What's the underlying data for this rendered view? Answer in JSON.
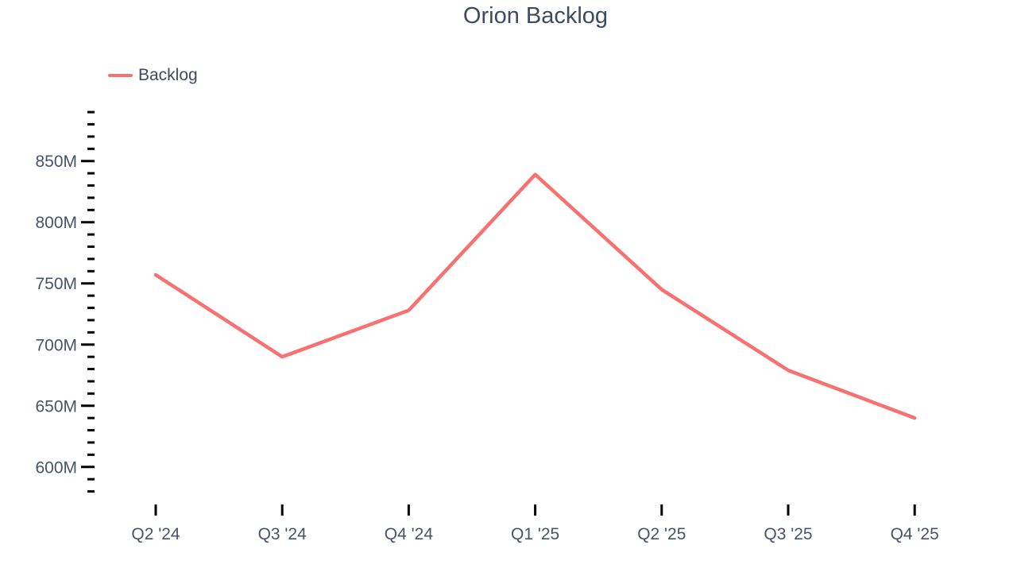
{
  "chart": {
    "title": "Orion Backlog",
    "legend": [
      {
        "label": "Backlog",
        "color": "#f87171"
      }
    ]
  },
  "chart_data": {
    "type": "line",
    "title": "Orion Backlog",
    "categories": [
      "Q2 '24",
      "Q3 '24",
      "Q4 '24",
      "Q1 '25",
      "Q2 '25",
      "Q3 '25",
      "Q4 '25"
    ],
    "series": [
      {
        "name": "Backlog",
        "color": "#f87171",
        "values": [
          757,
          690,
          728,
          839,
          745,
          679,
          640
        ]
      }
    ],
    "unit": "M",
    "xlabel": "",
    "ylabel": "",
    "ylim": [
      580,
      890
    ],
    "y_tick_step_minor": 10,
    "y_tick_step_major": 50,
    "y_label_values": [
      600,
      650,
      700,
      750,
      800,
      850
    ],
    "y_tick_labels": [
      "600M",
      "650M",
      "700M",
      "750M",
      "800M",
      "850M"
    ],
    "grid": false,
    "legend_position": "top-left"
  },
  "colors": {
    "background": "#ffffff",
    "title_text": "#3e4a5e",
    "axis_text": "#47536a",
    "tick": "#000000",
    "series_line": "#f87171"
  }
}
